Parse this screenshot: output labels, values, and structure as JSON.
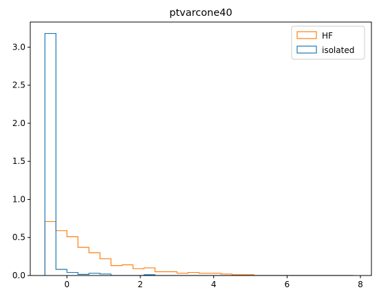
{
  "chart_data": {
    "type": "histogram",
    "title": "ptvarcone40",
    "xlabel": "",
    "ylabel": "",
    "xlim": [
      -1.0,
      8.3
    ],
    "ylim": [
      0,
      3.33
    ],
    "xticks": [
      0,
      2,
      4,
      6,
      8
    ],
    "yticks": [
      0.0,
      0.5,
      1.0,
      1.5,
      2.0,
      2.5,
      3.0
    ],
    "xtick_labels": [
      "0",
      "2",
      "4",
      "6",
      "8"
    ],
    "ytick_labels": [
      "0.0",
      "0.5",
      "1.0",
      "1.5",
      "2.0",
      "2.5",
      "3.0"
    ],
    "bin_edges": [
      -0.6,
      -0.3,
      0.0,
      0.3,
      0.6,
      0.9,
      1.2,
      1.5,
      1.8,
      2.1,
      2.4,
      2.7,
      3.0,
      3.3,
      3.6,
      3.9,
      4.2,
      4.5,
      4.8,
      5.1,
      5.4,
      5.7,
      6.0,
      6.3,
      6.6,
      6.9,
      7.2,
      7.5,
      7.8
    ],
    "series": [
      {
        "name": "HF",
        "color": "#ff7f0e",
        "values": [
          0.71,
          0.59,
          0.51,
          0.37,
          0.3,
          0.22,
          0.13,
          0.14,
          0.09,
          0.1,
          0.05,
          0.05,
          0.03,
          0.04,
          0.03,
          0.03,
          0.02,
          0.01,
          0.01,
          0.0,
          0.0,
          0.0,
          0.0,
          0.0,
          0.0,
          0.0,
          0.0,
          0.0
        ]
      },
      {
        "name": "isolated",
        "color": "#1f77b4",
        "values": [
          3.18,
          0.08,
          0.04,
          0.015,
          0.03,
          0.02,
          0.0,
          0.0,
          0.0,
          0.01,
          0.0,
          0.0,
          0.0,
          0.0,
          0.0,
          0.0,
          0.0,
          0.0,
          0.0,
          0.0,
          0.0,
          0.0,
          0.0,
          0.0,
          0.0,
          0.0,
          0.0,
          0.0
        ]
      }
    ],
    "legend": {
      "placement": "top-right",
      "entries": [
        "HF",
        "isolated"
      ]
    },
    "grid": false
  }
}
